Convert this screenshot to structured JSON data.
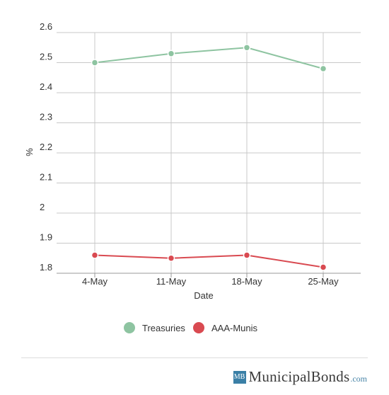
{
  "chart_data": {
    "type": "line",
    "title": "",
    "xlabel": "Date",
    "ylabel": "%",
    "categories": [
      "4-May",
      "11-May",
      "18-May",
      "25-May"
    ],
    "y_ticks": [
      "1.8",
      "1.9",
      "2",
      "2.1",
      "2.2",
      "2.3",
      "2.4",
      "2.5",
      "2.6"
    ],
    "ylim": [
      1.8,
      2.6
    ],
    "grid": true,
    "legend_position": "bottom",
    "series": [
      {
        "name": "Treasuries",
        "color": "#8ec4a1",
        "values": [
          2.5,
          2.53,
          2.55,
          2.48
        ]
      },
      {
        "name": "AAA-Munis",
        "color": "#d94a51",
        "values": [
          1.86,
          1.85,
          1.86,
          1.82
        ]
      }
    ]
  },
  "footer": {
    "logo_mark": "MB",
    "brand_name": "MunicipalBonds",
    "brand_tld": ".com"
  }
}
